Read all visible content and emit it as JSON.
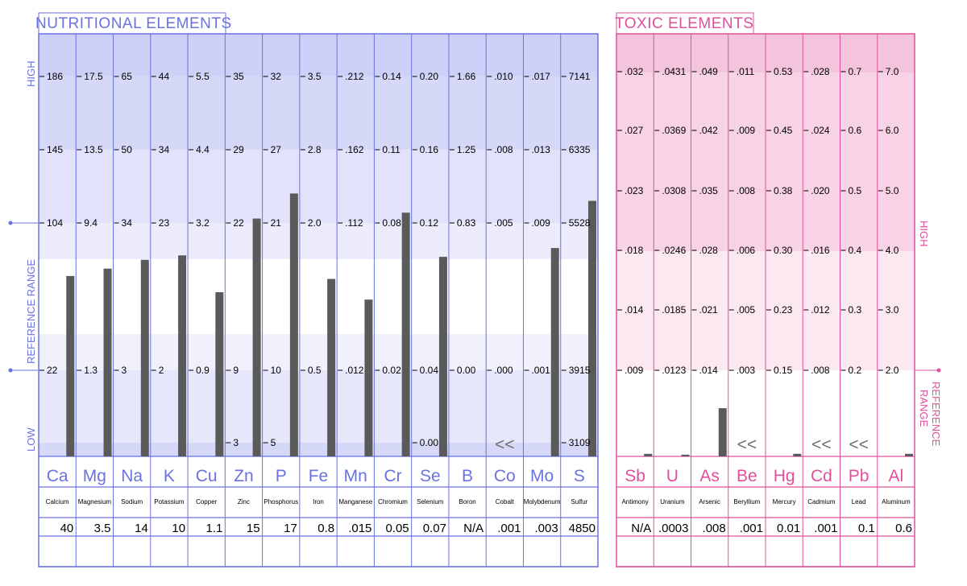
{
  "chart_data": [
    {
      "type": "bar",
      "title": "NUTRITIONAL ELEMENTS",
      "axis_labels": {
        "high": "HIGH",
        "low": "LOW",
        "reference": "REFERENCE RANGE"
      },
      "columns": [
        {
          "symbol": "Ca",
          "name": "Calcium",
          "result": "40",
          "ticks": [
            "186",
            "145",
            "104",
            "22"
          ],
          "low_tick": "",
          "bar_level": 0.64
        },
        {
          "symbol": "Mg",
          "name": "Magnesium",
          "result": "3.5",
          "ticks": [
            "17.5",
            "13.5",
            "9.4",
            "1.3"
          ],
          "low_tick": "",
          "bar_level": 0.69
        },
        {
          "symbol": "Na",
          "name": "Sodium",
          "result": "14",
          "ticks": [
            "65",
            "50",
            "34",
            "3"
          ],
          "low_tick": "",
          "bar_level": 0.75
        },
        {
          "symbol": "K",
          "name": "Potassium",
          "result": "10",
          "ticks": [
            "44",
            "34",
            "23",
            "2"
          ],
          "low_tick": "",
          "bar_level": 0.78
        },
        {
          "symbol": "Cu",
          "name": "Copper",
          "result": "1.1",
          "ticks": [
            "5.5",
            "4.4",
            "3.2",
            "0.9"
          ],
          "low_tick": "",
          "bar_level": 0.53
        },
        {
          "symbol": "Zn",
          "name": "Zinc",
          "result": "15",
          "ticks": [
            "35",
            "29",
            "22",
            "9"
          ],
          "low_tick": "3",
          "bar_level": 1.03
        },
        {
          "symbol": "P",
          "name": "Phosphorus",
          "result": "17",
          "ticks": [
            "32",
            "27",
            "21",
            "10"
          ],
          "low_tick": "5",
          "bar_level": 1.2
        },
        {
          "symbol": "Fe",
          "name": "Iron",
          "result": "0.8",
          "ticks": [
            "3.5",
            "2.8",
            "2.0",
            "0.5"
          ],
          "low_tick": "",
          "bar_level": 0.62
        },
        {
          "symbol": "Mn",
          "name": "Manganese",
          "result": ".015",
          "ticks": [
            ".212",
            ".162",
            ".112",
            ".012"
          ],
          "low_tick": "",
          "bar_level": 0.48
        },
        {
          "symbol": "Cr",
          "name": "Chromium",
          "result": "0.05",
          "ticks": [
            "0.14",
            "0.11",
            "0.08",
            "0.02"
          ],
          "low_tick": "",
          "bar_level": 1.07
        },
        {
          "symbol": "Se",
          "name": "Selenium",
          "result": "0.07",
          "ticks": [
            "0.20",
            "0.16",
            "0.12",
            "0.04"
          ],
          "low_tick": "0.00",
          "bar_level": 0.77
        },
        {
          "symbol": "B",
          "name": "Boron",
          "result": "N/A",
          "ticks": [
            "1.66",
            "1.25",
            "0.83",
            "0.00"
          ],
          "low_tick": "",
          "bar_level": null
        },
        {
          "symbol": "Co",
          "name": "Cobalt",
          "result": ".001",
          "ticks": [
            ".010",
            ".008",
            ".005",
            ".000"
          ],
          "low_tick": "",
          "bar_level": null,
          "marker": "<<"
        },
        {
          "symbol": "Mo",
          "name": "Molybdenum",
          "result": ".003",
          "ticks": [
            ".017",
            ".013",
            ".009",
            ".001"
          ],
          "low_tick": "",
          "bar_level": 0.83
        },
        {
          "symbol": "S",
          "name": "Sulfur",
          "result": "4850",
          "ticks": [
            "7141",
            "6335",
            "5528",
            "3915"
          ],
          "low_tick": "3109",
          "bar_level": 1.15
        }
      ]
    },
    {
      "type": "bar",
      "title": "TOXIC ELEMENTS",
      "axis_labels": {
        "high": "HIGH",
        "reference": "REFERENCE RANGE"
      },
      "columns": [
        {
          "symbol": "Sb",
          "name": "Antimony",
          "result": "N/A",
          "ticks": [
            ".032",
            ".027",
            ".023",
            ".018",
            ".014",
            ".009"
          ],
          "bar_level": 0.03
        },
        {
          "symbol": "U",
          "name": "Uranium",
          "result": ".0003",
          "ticks": [
            ".0431",
            ".0369",
            ".0308",
            ".0246",
            ".0185",
            ".0123"
          ],
          "bar_level": 0.02
        },
        {
          "symbol": "As",
          "name": "Arsenic",
          "result": ".008",
          "ticks": [
            ".049",
            ".042",
            ".035",
            ".028",
            ".021",
            ".014"
          ],
          "bar_level": 0.56
        },
        {
          "symbol": "Be",
          "name": "Beryllium",
          "result": ".001",
          "ticks": [
            ".011",
            ".009",
            ".008",
            ".006",
            ".005",
            ".003"
          ],
          "bar_level": null,
          "marker": "<<"
        },
        {
          "symbol": "Hg",
          "name": "Mercury",
          "result": "0.01",
          "ticks": [
            "0.53",
            "0.45",
            "0.38",
            "0.30",
            "0.23",
            "0.15"
          ],
          "bar_level": 0.03
        },
        {
          "symbol": "Cd",
          "name": "Cadmium",
          "result": ".001",
          "ticks": [
            ".028",
            ".024",
            ".020",
            ".016",
            ".012",
            ".008"
          ],
          "bar_level": null,
          "marker": "<<"
        },
        {
          "symbol": "Pb",
          "name": "Lead",
          "result": "0.1",
          "ticks": [
            "0.7",
            "0.6",
            "0.5",
            "0.4",
            "0.3",
            "0.2"
          ],
          "bar_level": null,
          "marker": "<<"
        },
        {
          "symbol": "Al",
          "name": "Aluminum",
          "result": "0.6",
          "ticks": [
            "7.0",
            "6.0",
            "5.0",
            "4.0",
            "3.0",
            "2.0"
          ],
          "bar_level": 0.03
        }
      ]
    }
  ],
  "colors": {
    "nutritional": "#6a72e0",
    "toxic": "#e0509a",
    "bar": "#5a5a5a"
  }
}
